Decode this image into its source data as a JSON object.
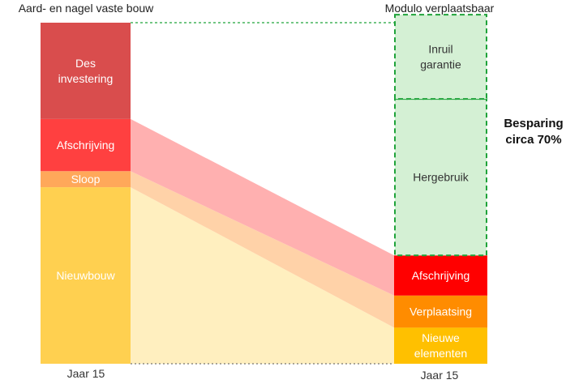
{
  "chart_data": {
    "type": "bar",
    "subtype": "stacked-comparison",
    "columns": [
      {
        "title": "Aard- en nagel vaste bouw",
        "x_label": "Jaar 15",
        "segments": [
          {
            "label": "Nieuwbouw",
            "value": 44,
            "color": "#ffd050"
          },
          {
            "label": "Sloop",
            "value": 4,
            "color": "#ffa85a"
          },
          {
            "label": "Afschrijving",
            "value": 13,
            "color": "#ff4040"
          },
          {
            "label": "Des investering",
            "value": 24,
            "color": "#d94d4d"
          }
        ]
      },
      {
        "title": "Modulo verplaatsbaar",
        "x_label": "Jaar 15",
        "segments": [
          {
            "label": "Nieuwe elementen",
            "value": 9,
            "color": "#ffc000"
          },
          {
            "label": "Verplaatsing",
            "value": 8,
            "color": "#ff8c00"
          },
          {
            "label": "Afschrijving",
            "value": 10,
            "color": "#ff0000"
          },
          {
            "label": "Hergebruik",
            "value": 39,
            "color": "#d4f0d4",
            "dashed": true
          },
          {
            "label": "Inruil garantie",
            "value": 21,
            "color": "#d4f0d4",
            "dashed": true
          }
        ]
      }
    ],
    "annotation": "Besparing circa 70%",
    "ylim": [
      0,
      85
    ],
    "grid": false,
    "legend": "none"
  },
  "colors": {
    "ribbon_afschrijving": "#ffb0b0",
    "ribbon_sloop": "#ffd2a8",
    "ribbon_nieuwbouw": "#ffefbf",
    "dashed_border": "#1fa33a",
    "guide_line": "#555555"
  }
}
